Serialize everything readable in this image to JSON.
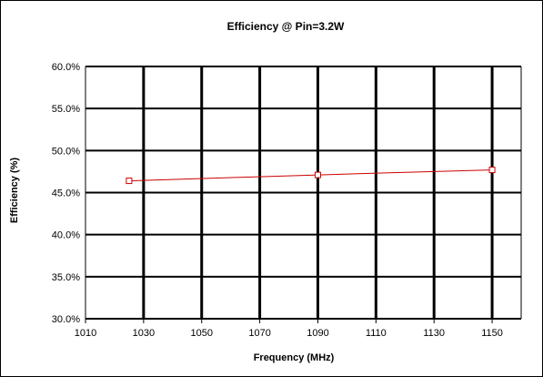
{
  "chart_data": {
    "type": "line",
    "title": "Efficiency @ Pin=3.2W",
    "xlabel": "Frequency (MHz)",
    "ylabel": "Efficiency (%)",
    "xlim": [
      1010,
      1160
    ],
    "ylim": [
      0.3,
      0.6
    ],
    "x_ticks": [
      1010,
      1030,
      1050,
      1070,
      1090,
      1110,
      1130,
      1150
    ],
    "y_ticks": [
      0.3,
      0.35,
      0.4,
      0.45,
      0.5,
      0.55,
      0.6
    ],
    "y_tick_labels": [
      "30.0%",
      "35.0%",
      "40.0%",
      "45.0%",
      "50.0%",
      "55.0%",
      "60.0%"
    ],
    "grid": true,
    "series": [
      {
        "x": [
          1025,
          1090,
          1150
        ],
        "y": [
          0.464,
          0.471,
          0.477
        ],
        "color": "#cc0000",
        "marker": "square"
      }
    ]
  }
}
